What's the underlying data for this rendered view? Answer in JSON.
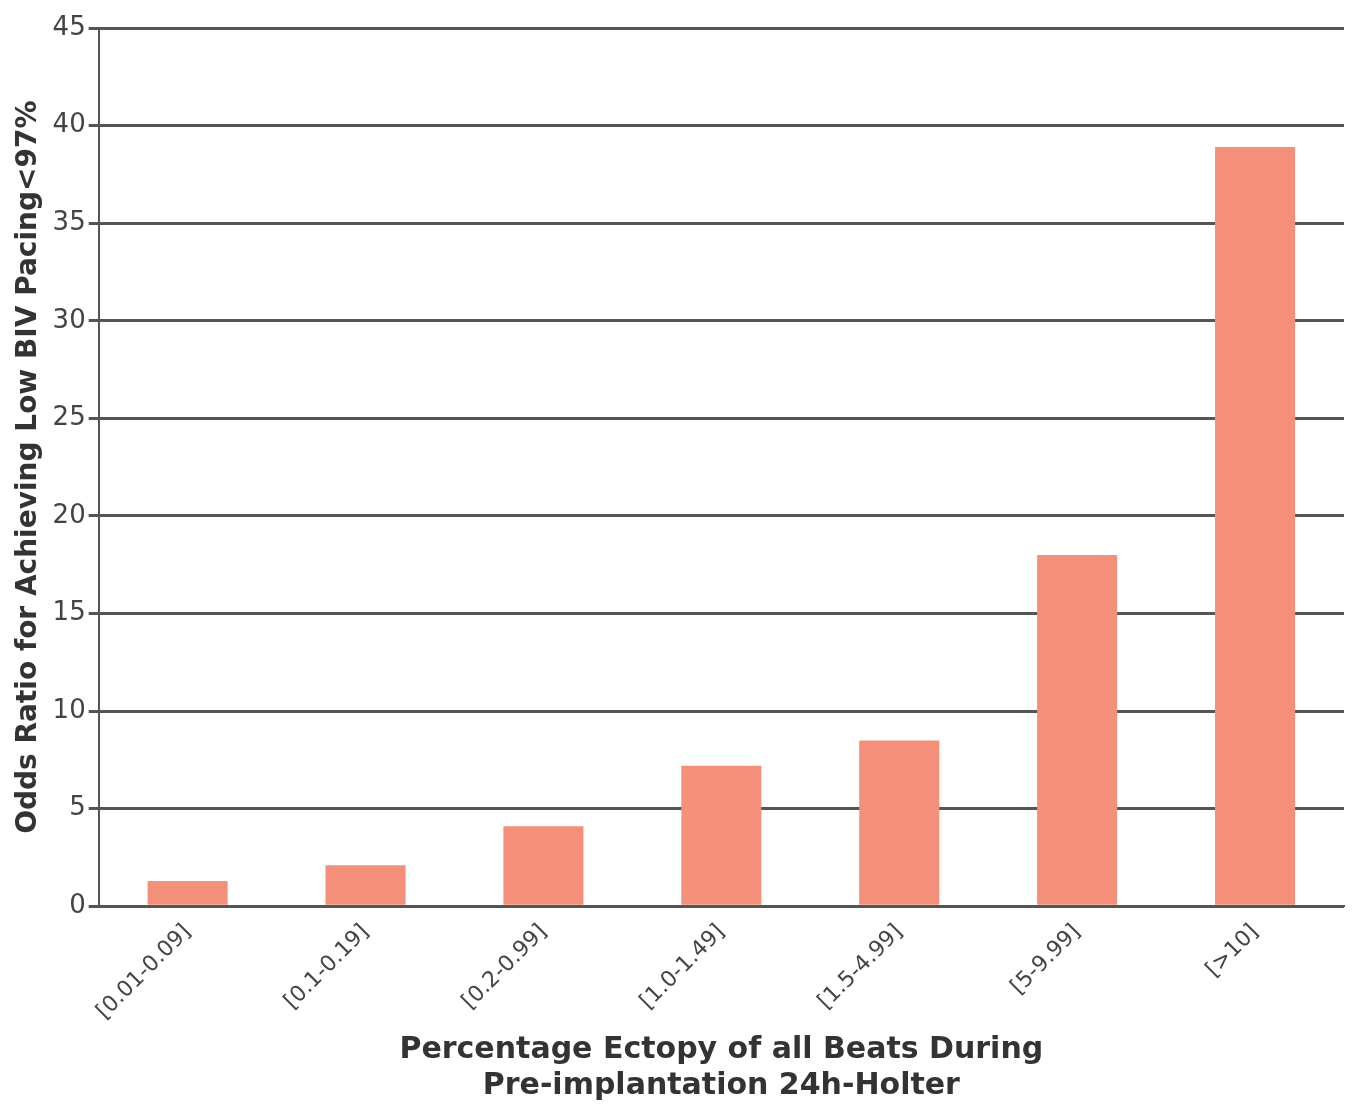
{
  "chart_data": {
    "type": "bar",
    "xlabel": "Percentage Ectopy of all Beats During\nPre-implantation 24h-Holter",
    "ylabel": "Odds Ratio for Achieving Low BIV Pacing<97%",
    "categories": [
      "[0.01-0.09]",
      "[0.1-0.19]",
      "[0.2-0.99]",
      "[1.0-1.49]",
      "[1.5-4.99]",
      "[5-9.99]",
      "[>10]"
    ],
    "values": [
      1.3,
      2.1,
      4.1,
      7.2,
      8.5,
      18.0,
      38.9
    ],
    "color": "#f4907a",
    "ylim": [
      0,
      45
    ],
    "yticks": [
      0,
      5,
      10,
      15,
      20,
      25,
      30,
      35,
      40,
      45
    ],
    "grid": "y",
    "legend": false
  }
}
